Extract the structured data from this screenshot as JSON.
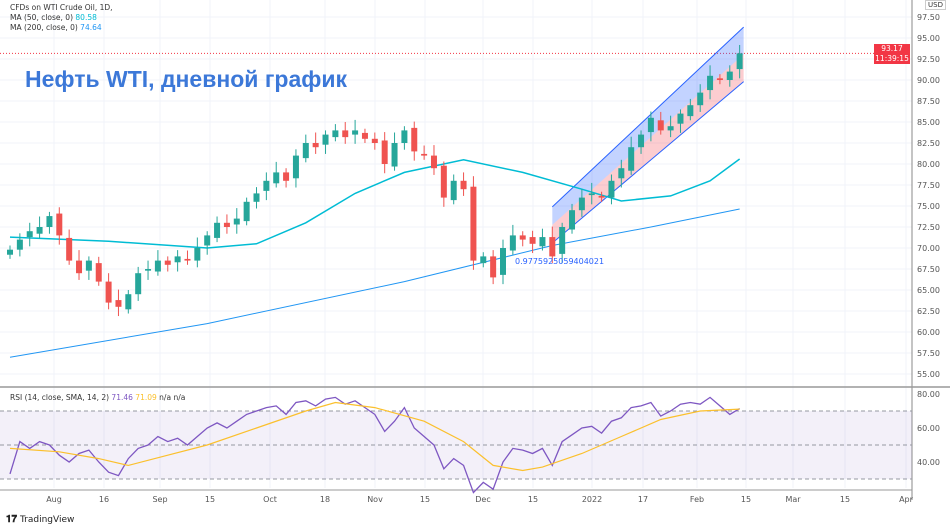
{
  "legend": {
    "symbol": "CFDs on WTI Crude Oil, 1D,",
    "ma50_label": "MA (50, close, 0)",
    "ma50_value": "80.58",
    "ma200_label": "MA (200, close, 0)",
    "ma200_value": "74.64",
    "rsi_label": "RSI (14, close, SMA, 14, 2)",
    "rsi_value": "71.46",
    "rsi_ma_value": "71.09",
    "na1": "n/a",
    "na2": "n/a"
  },
  "title": "Нефть WTI, дневной график",
  "currency": "USD",
  "last_price": "93.17",
  "countdown": "11:39:15",
  "channel_label": "0.9775925059404021",
  "brand": "TradingView",
  "colors": {
    "up": "#26a69a",
    "down": "#ef5350",
    "ma50": "#00bcd4",
    "ma200": "#2196f3",
    "rsi": "#7e57c2",
    "rsi_ma": "#fbc02d",
    "title": "#3c78d8"
  },
  "chart_data": [
    {
      "type": "candlestick",
      "ylim": [
        53,
        98
      ],
      "price_ticks": [
        "97.50",
        "95.00",
        "92.50",
        "90.00",
        "87.50",
        "85.00",
        "82.50",
        "80.00",
        "77.50",
        "75.00",
        "72.50",
        "70.00",
        "67.50",
        "65.00",
        "62.50",
        "60.00",
        "57.50",
        "55.00"
      ],
      "x_ticks": [
        "Aug",
        "16",
        "Sep",
        "15",
        "Oct",
        "18",
        "Nov",
        "15",
        "Dec",
        "15",
        "2022",
        "17",
        "Feb",
        "15",
        "Mar",
        "15",
        "Apr"
      ],
      "close": [
        69.8,
        71,
        72,
        72.5,
        73.8,
        71.5,
        68.5,
        67,
        68.5,
        66,
        63.5,
        63,
        64.5,
        67,
        67.5,
        68.5,
        68,
        69,
        68.5,
        70,
        71.5,
        73,
        72.5,
        73.5,
        75.5,
        76.5,
        78,
        79,
        78,
        81,
        82.5,
        82,
        83.5,
        84,
        83.2,
        84,
        83,
        82.5,
        80,
        82.5,
        84,
        81.5,
        81,
        79.5,
        76,
        78,
        77,
        68.5,
        69,
        66.5,
        70,
        71.5,
        71,
        70.5,
        71.3,
        69,
        72.5,
        74.5,
        76,
        76.5,
        76,
        78,
        79.5,
        82,
        83.5,
        85.5,
        84,
        84.5,
        86,
        87,
        88.5,
        90.5,
        90,
        91,
        93.17
      ],
      "ma50": [
        [
          0,
          71.3
        ],
        [
          10,
          70.8
        ],
        [
          20,
          70
        ],
        [
          25,
          70.5
        ],
        [
          30,
          73
        ],
        [
          35,
          76.5
        ],
        [
          40,
          79
        ],
        [
          46,
          80.5
        ],
        [
          52,
          79
        ],
        [
          58,
          77
        ],
        [
          62,
          75.6
        ],
        [
          67,
          76.2
        ],
        [
          71,
          78
        ],
        [
          74,
          80.6
        ]
      ],
      "ma200": [
        [
          0,
          57
        ],
        [
          20,
          61
        ],
        [
          40,
          66
        ],
        [
          55,
          70.3
        ],
        [
          65,
          72.5
        ],
        [
          74,
          74.64
        ]
      ],
      "channel": {
        "start_index": 55,
        "end_index": 74,
        "lower": [
          70.6,
          89.8
        ],
        "upper": [
          74.9,
          96.3
        ]
      }
    },
    {
      "type": "line",
      "ylim": [
        20,
        83
      ],
      "ticks": [
        "80.00",
        "60.00",
        "40.00"
      ],
      "bands": [
        30,
        50,
        70
      ],
      "rsi": [
        33,
        52,
        48,
        52,
        50,
        44,
        40,
        45,
        47,
        40,
        34,
        32,
        42,
        48,
        50,
        55,
        52,
        54,
        50,
        55,
        60,
        63,
        60,
        64,
        68,
        70,
        72,
        73,
        68,
        75,
        76,
        73,
        77,
        78,
        74,
        76,
        72,
        68,
        58,
        64,
        72,
        60,
        55,
        50,
        36,
        42,
        38,
        22,
        28,
        24,
        40,
        48,
        47,
        45,
        48,
        38,
        52,
        56,
        60,
        61,
        57,
        64,
        66,
        72,
        73,
        75,
        67,
        70,
        74,
        75,
        74,
        78,
        73,
        68,
        71.46
      ],
      "rsi_ma": [
        [
          0,
          48
        ],
        [
          5,
          46
        ],
        [
          9,
          42
        ],
        [
          12,
          38
        ],
        [
          16,
          44
        ],
        [
          20,
          50
        ],
        [
          25,
          60
        ],
        [
          30,
          70
        ],
        [
          33,
          75
        ],
        [
          37,
          72
        ],
        [
          42,
          64
        ],
        [
          46,
          52
        ],
        [
          49,
          38
        ],
        [
          52,
          35
        ],
        [
          54,
          37
        ],
        [
          58,
          45
        ],
        [
          62,
          55
        ],
        [
          66,
          65
        ],
        [
          70,
          70
        ],
        [
          74,
          71.09
        ]
      ]
    }
  ]
}
